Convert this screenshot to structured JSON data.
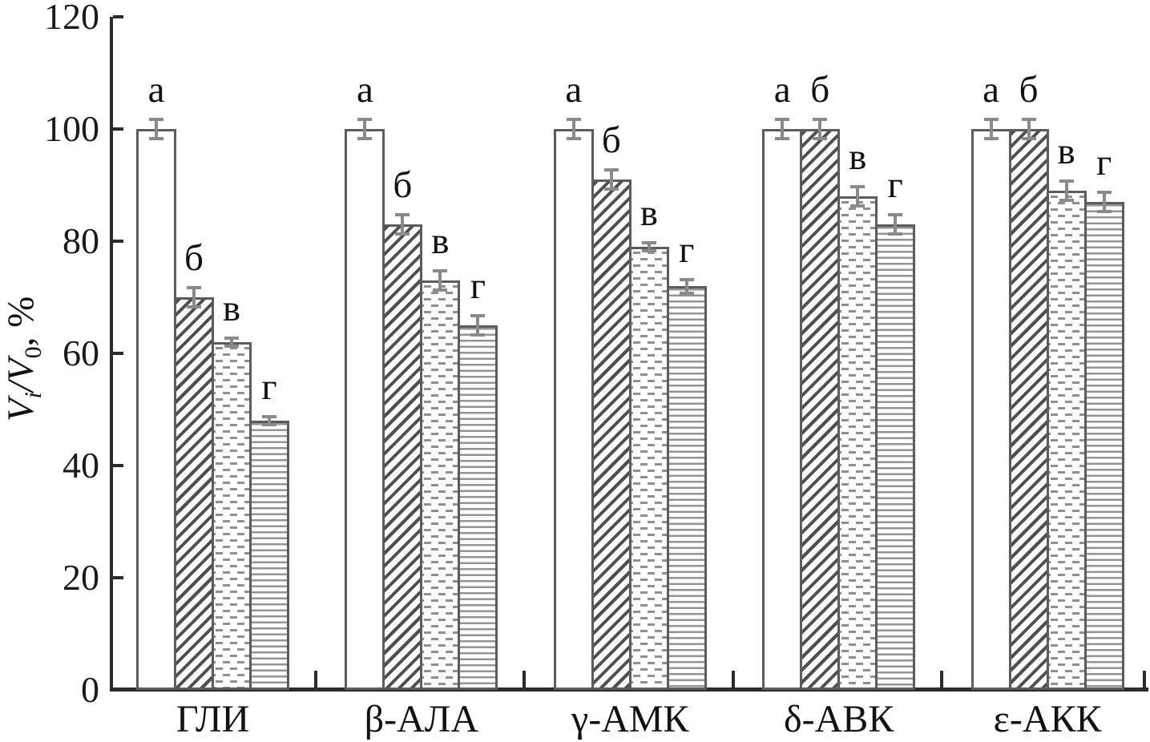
{
  "figure": {
    "ylabel_parts": {
      "v1": "V",
      "sub1": "i",
      "slash": "/",
      "v2": "V",
      "sub2": "0",
      "suffix": ", %"
    }
  },
  "chart_data": {
    "type": "bar",
    "title": "",
    "xlabel": "",
    "ylabel": "Vi/V0, %",
    "ylim": [
      0,
      120
    ],
    "yticks": [
      0,
      20,
      40,
      60,
      80,
      100,
      120
    ],
    "grid": false,
    "legend_position": "none",
    "bar_group_annotation": "letters above bars denote series: а, б, в, г",
    "categories": [
      "ГЛИ",
      "β-АЛА",
      "γ-АМК",
      "δ-АВК",
      "ε-АКК"
    ],
    "series": [
      {
        "name": "а",
        "pattern": "plain",
        "values": [
          100,
          100,
          100,
          100,
          100
        ],
        "errors": [
          2,
          2,
          2,
          2,
          2
        ]
      },
      {
        "name": "б",
        "pattern": "diagonal-hatch",
        "values": [
          70,
          83,
          91,
          100,
          100
        ],
        "errors": [
          2,
          2,
          2,
          2,
          2
        ]
      },
      {
        "name": "в",
        "pattern": "dashes",
        "values": [
          62,
          73,
          79,
          88,
          89
        ],
        "errors": [
          1,
          2,
          1,
          2,
          2
        ]
      },
      {
        "name": "г",
        "pattern": "horizontal-lines",
        "values": [
          48,
          65,
          72,
          83,
          87
        ],
        "errors": [
          1,
          2,
          1.5,
          2,
          2
        ]
      }
    ],
    "colors": {
      "axis": "#2b2b2b",
      "bar_outline": "#5c5c5c",
      "hatch": "#4f4f4f",
      "pattern_gray": "#8f8f8f",
      "error_bar": "#8a8a8a",
      "text": "#111111",
      "background": "#ffffff"
    }
  }
}
